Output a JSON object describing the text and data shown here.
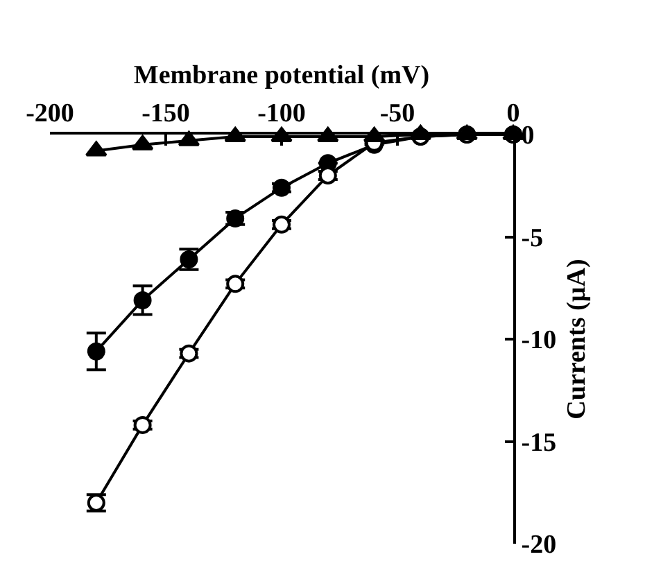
{
  "chart_data": {
    "type": "line",
    "xlabel": "Membrane potential (mV)",
    "ylabel": "Currents (µA)",
    "x": [
      -180,
      -160,
      -140,
      -120,
      -100,
      -80,
      -60,
      -40,
      -20,
      0
    ],
    "xlim": [
      -200,
      0
    ],
    "xticks": [
      -200,
      -150,
      -100,
      -50,
      0
    ],
    "ylim": [
      -20,
      0
    ],
    "yticks": [
      -20,
      -15,
      -10,
      -5,
      0
    ],
    "legend": false,
    "series": [
      {
        "color": "#000000",
        "marker": "circle",
        "values": [
          -10.6,
          -8.1,
          -6.1,
          -4.1,
          -2.6,
          -1.4,
          -0.5,
          -0.1,
          0,
          0
        ],
        "errors": [
          0.9,
          0.7,
          0.5,
          0.3,
          0.2,
          null,
          null,
          null,
          null,
          null
        ]
      },
      {
        "color": "#000000",
        "colors": [
          "#ffffff",
          "#ffffff",
          "#ffffff",
          "#ffffff",
          "#ffffff",
          "#ffffff",
          "#ffffff",
          "#ffffff",
          "#ffffff",
          "#ffffff"
        ],
        "marker": "circle",
        "values": [
          -18.0,
          -14.2,
          -10.7,
          -7.3,
          -4.4,
          -2.0,
          -0.4,
          -0.1,
          0,
          0
        ],
        "errors": [
          0.4,
          0.2,
          0.2,
          0.2,
          0.2,
          0.2,
          null,
          null,
          null,
          null
        ]
      },
      {
        "color": "#000000",
        "marker": "triangle",
        "values": [
          -0.8,
          -0.5,
          -0.3,
          -0.1,
          -0.1,
          -0.1,
          -0.1,
          0,
          0,
          0
        ]
      }
    ]
  }
}
